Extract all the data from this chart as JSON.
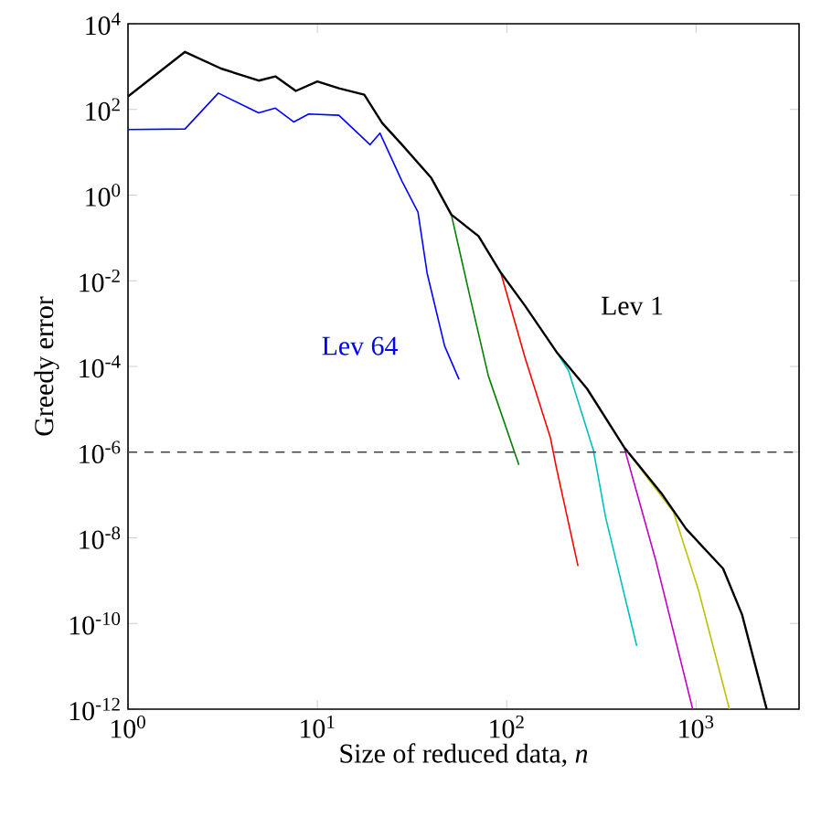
{
  "chart_data": {
    "type": "line",
    "xlabel": "Size of reduced data, *n*",
    "ylabel": "Greedy error",
    "log": "xy",
    "xlim": [
      1,
      3500
    ],
    "ylim": [
      1e-12,
      10000
    ],
    "xticks": [
      {
        "value": 1,
        "label": "10$^{0}$"
      },
      {
        "value": 10,
        "label": "10$^{1}$"
      },
      {
        "value": 100,
        "label": "10$^{2}$"
      },
      {
        "value": 1000,
        "label": "10$^{3}$"
      }
    ],
    "yticks": [
      {
        "value": 1e-12,
        "label": "10$^{-12}$"
      },
      {
        "value": 1e-10,
        "label": "10$^{-10}$"
      },
      {
        "value": 1e-08,
        "label": "10$^{-8}$"
      },
      {
        "value": 1e-06,
        "label": "10$^{-6}$"
      },
      {
        "value": 0.0001,
        "label": "10$^{-4}$"
      },
      {
        "value": 0.01,
        "label": "10$^{-2}$"
      },
      {
        "value": 1,
        "label": "10$^{0}$"
      },
      {
        "value": 100,
        "label": "10$^{2}$"
      },
      {
        "value": 10000,
        "label": "10$^{4}$"
      }
    ],
    "ref_lines": [
      {
        "axis": "y",
        "value": 1e-06,
        "color": "#404040",
        "line_style": "dashed"
      }
    ],
    "series": [
      {
        "name": "Lev 64",
        "color": "#0000ff",
        "x": [
          1,
          2,
          3,
          4.9,
          6,
          7.5,
          9,
          13,
          15,
          19,
          21.4,
          28,
          34,
          38,
          47,
          56
        ],
        "values": [
          34,
          35,
          240,
          83,
          107,
          51,
          78,
          73,
          40,
          15,
          28,
          2.1,
          0.4,
          0.015,
          0.0003,
          5e-05
        ]
      },
      {
        "color": "#008000",
        "x": [
          51,
          64,
          80,
          116
        ],
        "values": [
          0.35,
          0.0042,
          6e-05,
          5e-07
        ]
      },
      {
        "color": "#ff0000",
        "x": [
          93,
          125,
          170,
          183,
          238
        ],
        "values": [
          0.0155,
          0.00016,
          2.2e-06,
          4.3e-07,
          2.2e-09
        ]
      },
      {
        "color": "#00bfbf",
        "x": [
          183,
          212,
          287,
          333,
          486
        ],
        "values": [
          0.00022,
          8e-05,
          1.1e-06,
          3e-08,
          3e-11
        ]
      },
      {
        "color": "#bf00bf",
        "x": [
          417,
          610,
          960
        ],
        "values": [
          1.3e-06,
          3.2e-09,
          1e-12
        ]
      },
      {
        "color": "#bfbf00",
        "x": [
          417,
          760,
          1030,
          1500
        ],
        "values": [
          1.3e-06,
          4e-08,
          6e-10,
          1e-12
        ]
      },
      {
        "name": "Lev 1",
        "color": "#000000",
        "x": [
          1,
          2,
          3.1,
          4.9,
          6,
          7.7,
          10,
          13,
          17.7,
          22,
          28,
          40,
          51,
          71,
          93,
          125,
          183,
          266,
          417,
          656,
          887,
          1390,
          1750,
          2360
        ],
        "values": [
          200,
          2200,
          900,
          470,
          590,
          270,
          450,
          310,
          220,
          48,
          15,
          2.5,
          0.35,
          0.11,
          0.0155,
          0.0026,
          0.00022,
          3e-05,
          1.3e-06,
          1.1e-07,
          1.6e-08,
          1.9e-09,
          1.6e-10,
          1e-12
        ]
      }
    ]
  }
}
